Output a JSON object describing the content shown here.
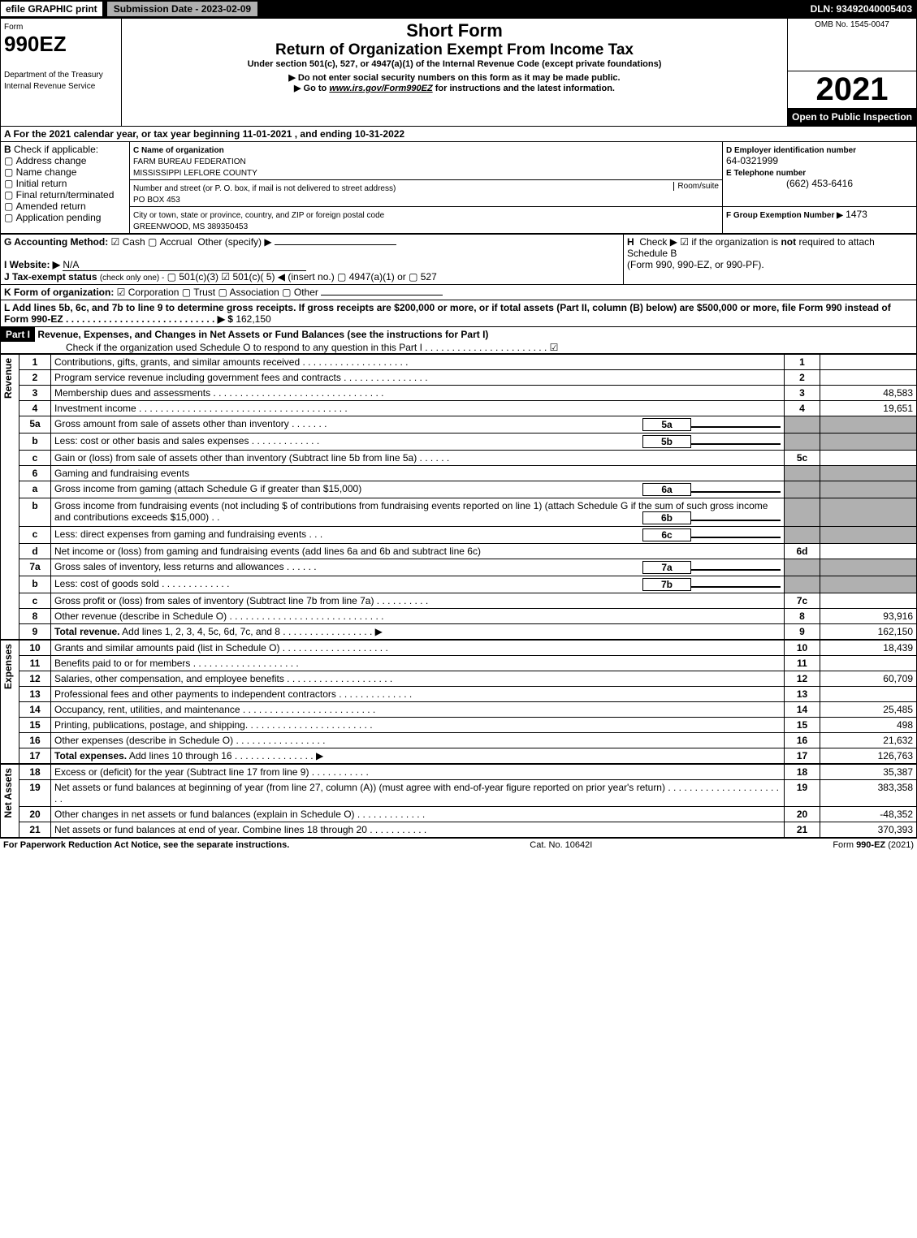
{
  "topbar": {
    "efile": "efile GRAPHIC print",
    "submission": "Submission Date - 2023-02-09",
    "dln": "DLN: 93492040005403"
  },
  "header": {
    "form_label": "Form",
    "form_number": "990EZ",
    "dept": "Department of the Treasury\nInternal Revenue Service",
    "title": "Short Form",
    "subtitle": "Return of Organization Exempt From Income Tax",
    "under": "Under section 501(c), 527, or 4947(a)(1) of the Internal Revenue Code (except private foundations)",
    "note1": "▶ Do not enter social security numbers on this form as it may be made public.",
    "note2": "▶ Go to www.irs.gov/Form990EZ for instructions and the latest information.",
    "omb": "OMB No. 1545-0047",
    "year": "2021",
    "inspection": "Open to Public Inspection"
  },
  "sectionA": {
    "text": "A  For the 2021 calendar year, or tax year beginning 11-01-2021 , and ending 10-31-2022"
  },
  "sectionB": {
    "label": "B",
    "check_if": "Check if applicable:",
    "items": [
      "Address change",
      "Name change",
      "Initial return",
      "Final return/terminated",
      "Amended return",
      "Application pending"
    ]
  },
  "sectionC": {
    "label": "C Name of organization",
    "org1": "FARM BUREAU FEDERATION",
    "org2": "MISSISSIPPI LEFLORE COUNTY",
    "street_label": "Number and street (or P. O. box, if mail is not delivered to street address)",
    "room_label": "Room/suite",
    "street": "PO BOX 453",
    "city_label": "City or town, state or province, country, and ZIP or foreign postal code",
    "city": "GREENWOOD, MS  389350453"
  },
  "sectionD": {
    "label": "D Employer identification number",
    "value": "64-0321999"
  },
  "sectionE": {
    "label": "E Telephone number",
    "value": "(662) 453-6416"
  },
  "sectionF": {
    "label": "F Group Exemption Number  ▶",
    "value": "1473"
  },
  "sectionG": {
    "label": "G Accounting Method:",
    "cash": "Cash",
    "accrual": "Accrual",
    "other": "Other (specify) ▶"
  },
  "sectionH": {
    "label": "H",
    "text1": "Check ▶ ☑ if the organization is not required to attach Schedule B",
    "text2": "(Form 990, 990-EZ, or 990-PF)."
  },
  "sectionI": {
    "label": "I Website: ▶",
    "value": "N/A"
  },
  "sectionJ": {
    "label": "J Tax-exempt status",
    "note": "(check only one) -",
    "opts": "▢ 501(c)(3)  ☑ 501(c)( 5) ◀ (insert no.)  ▢ 4947(a)(1) or  ▢ 527"
  },
  "sectionK": {
    "label": "K Form of organization:",
    "opts": "☑ Corporation  ▢ Trust  ▢ Association  ▢ Other"
  },
  "sectionL": {
    "text": "L Add lines 5b, 6c, and 7b to line 9 to determine gross receipts. If gross receipts are $200,000 or more, or if total assets (Part II, column (B) below) are $500,000 or more, file Form 990 instead of Form 990-EZ  . . . . . . . . . . . . . . . . . . . . . . . . . . . .  ▶ $",
    "value": "162,150"
  },
  "part1": {
    "label": "Part I",
    "title": "Revenue, Expenses, and Changes in Net Assets or Fund Balances (see the instructions for Part I)",
    "check": "Check if the organization used Schedule O to respond to any question in this Part I . . . . . . . . . . . . . . . . . . . . . . .  ☑"
  },
  "sections": {
    "revenue": "Revenue",
    "expenses": "Expenses",
    "netassets": "Net Assets"
  },
  "lines": [
    {
      "n": "1",
      "desc": "Contributions, gifts, grants, and similar amounts received . . . . . . . . . . . . . . . . . . . .",
      "box": "1",
      "val": ""
    },
    {
      "n": "2",
      "desc": "Program service revenue including government fees and contracts . . . . . . . . . . . . . . . .",
      "box": "2",
      "val": ""
    },
    {
      "n": "3",
      "desc": "Membership dues and assessments . . . . . . . . . . . . . . . . . . . . . . . . . . . . . . . .",
      "box": "3",
      "val": "48,583"
    },
    {
      "n": "4",
      "desc": "Investment income . . . . . . . . . . . . . . . . . . . . . . . . . . . . . . . . . . . . . . .",
      "box": "4",
      "val": "19,651"
    },
    {
      "n": "5a",
      "desc": "Gross amount from sale of assets other than inventory . . . . . . .",
      "sub": "5a",
      "subval": "",
      "box": "",
      "val": "",
      "shade": true
    },
    {
      "n": "b",
      "desc": "Less: cost or other basis and sales expenses . . . . . . . . . . . . .",
      "sub": "5b",
      "subval": "",
      "box": "",
      "val": "",
      "shade": true
    },
    {
      "n": "c",
      "desc": "Gain or (loss) from sale of assets other than inventory (Subtract line 5b from line 5a) . . . . . .",
      "box": "5c",
      "val": ""
    },
    {
      "n": "6",
      "desc": "Gaming and fundraising events",
      "box": "",
      "val": "",
      "shade": true
    },
    {
      "n": "a",
      "desc": "Gross income from gaming (attach Schedule G if greater than $15,000)",
      "sub": "6a",
      "subval": "",
      "box": "",
      "val": "",
      "shade": true
    },
    {
      "n": "b",
      "desc": "Gross income from fundraising events (not including $                      of contributions from fundraising events reported on line 1) (attach Schedule G if the sum of such gross income and contributions exceeds $15,000)    .  .",
      "sub": "6b",
      "subval": "",
      "box": "",
      "val": "",
      "shade": true,
      "tall": true
    },
    {
      "n": "c",
      "desc": "Less: direct expenses from gaming and fundraising events     .  .  .",
      "sub": "6c",
      "subval": "",
      "box": "",
      "val": "",
      "shade": true
    },
    {
      "n": "d",
      "desc": "Net income or (loss) from gaming and fundraising events (add lines 6a and 6b and subtract line 6c)",
      "box": "6d",
      "val": ""
    },
    {
      "n": "7a",
      "desc": "Gross sales of inventory, less returns and allowances . . . . . .",
      "sub": "7a",
      "subval": "",
      "box": "",
      "val": "",
      "shade": true
    },
    {
      "n": "b",
      "desc": "Less: cost of goods sold            .   .   .   .   .   .   .   .   .   .   .   .   .",
      "sub": "7b",
      "subval": "",
      "box": "",
      "val": "",
      "shade": true
    },
    {
      "n": "c",
      "desc": "Gross profit or (loss) from sales of inventory (Subtract line 7b from line 7a) . . . . . . . . . .",
      "box": "7c",
      "val": ""
    },
    {
      "n": "8",
      "desc": "Other revenue (describe in Schedule O) . . . . . . . . . . . . . . . . . . . . . . . . . . . . .",
      "box": "8",
      "val": "93,916"
    },
    {
      "n": "9",
      "desc": "Total revenue. Add lines 1, 2, 3, 4, 5c, 6d, 7c, and 8  . . . . . . . . . . . . . . . . .    ▶",
      "box": "9",
      "val": "162,150",
      "bold": true
    }
  ],
  "exp_lines": [
    {
      "n": "10",
      "desc": "Grants and similar amounts paid (list in Schedule O) . . . . . . . . . . . . . . . . . . . .",
      "box": "10",
      "val": "18,439"
    },
    {
      "n": "11",
      "desc": "Benefits paid to or for members      .   .   .   .   .   .   .   .   .   .   .   .   .   .   .   .   .   .   .   .",
      "box": "11",
      "val": ""
    },
    {
      "n": "12",
      "desc": "Salaries, other compensation, and employee benefits . . . . . . . . . . . . . . . . . . . .",
      "box": "12",
      "val": "60,709"
    },
    {
      "n": "13",
      "desc": "Professional fees and other payments to independent contractors . . . . . . . . . . . . . .",
      "box": "13",
      "val": ""
    },
    {
      "n": "14",
      "desc": "Occupancy, rent, utilities, and maintenance . . . . . . . . . . . . . . . . . . . . . . . . .",
      "box": "14",
      "val": "25,485"
    },
    {
      "n": "15",
      "desc": "Printing, publications, postage, and shipping. . . . . . . . . . . . . . . . . . . . . . . .",
      "box": "15",
      "val": "498"
    },
    {
      "n": "16",
      "desc": "Other expenses (describe in Schedule O)      .   .   .   .   .   .   .   .   .   .   .   .   .   .   .   .   .",
      "box": "16",
      "val": "21,632"
    },
    {
      "n": "17",
      "desc": "Total expenses. Add lines 10 through 16      .   .   .   .   .   .   .   .   .   .   .   .   .   .   .   ▶",
      "box": "17",
      "val": "126,763",
      "bold": true
    }
  ],
  "net_lines": [
    {
      "n": "18",
      "desc": "Excess or (deficit) for the year (Subtract line 17 from line 9)       .   .   .   .   .   .   .   .   .   .   .",
      "box": "18",
      "val": "35,387"
    },
    {
      "n": "19",
      "desc": "Net assets or fund balances at beginning of year (from line 27, column (A)) (must agree with end-of-year figure reported on prior year's return) . . . . . . . . . . . . . . . . . . . . . . .",
      "box": "19",
      "val": "383,358",
      "tall": true
    },
    {
      "n": "20",
      "desc": "Other changes in net assets or fund balances (explain in Schedule O) . . . . . . . . . . . . .",
      "box": "20",
      "val": "-48,352"
    },
    {
      "n": "21",
      "desc": "Net assets or fund balances at end of year. Combine lines 18 through 20 . . . . . . . . . . .",
      "box": "21",
      "val": "370,393"
    }
  ],
  "footer": {
    "left": "For Paperwork Reduction Act Notice, see the separate instructions.",
    "mid": "Cat. No. 10642I",
    "right": "Form 990-EZ (2021)"
  }
}
